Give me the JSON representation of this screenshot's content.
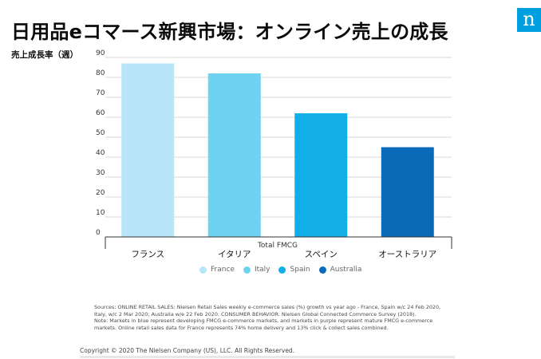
{
  "header": {
    "title": "日用品eコマース新興市場：オンライン売上の成長",
    "logo_letter": "n"
  },
  "chart_data": {
    "type": "bar",
    "ylabel": "売上成長率（週）",
    "xlabel": "Total FMCG",
    "categories": [
      "フランス",
      "イタリア",
      "スペイン",
      "オーストラリア"
    ],
    "values": [
      87,
      82,
      62,
      45
    ],
    "ylim": [
      0,
      90
    ],
    "yticks": [
      0,
      10,
      20,
      30,
      40,
      50,
      60,
      70,
      80,
      90
    ],
    "grid": true,
    "colors": [
      "#b8e6f8",
      "#6fd2f2",
      "#12aee8",
      "#0a6ab8"
    ],
    "legend": {
      "placement": "bottom",
      "items": [
        {
          "label": "France",
          "color": "#b8e6f8"
        },
        {
          "label": "Italy",
          "color": "#6fd2f2"
        },
        {
          "label": "Spain",
          "color": "#12aee8"
        },
        {
          "label": "Australia",
          "color": "#0a6ab8"
        }
      ]
    }
  },
  "notes": {
    "sources_line1": "Sources: ONLINE RETAIL SALES: Nielsen Retail Sales weekly e-commerce sales (%) growth vs year ago - France, Spain w/c 24 Feb 2020,",
    "sources_line2": "Italy, w/c 2 Mar 2020; Australia w/e 22 Feb 2020. CONSUMER BEHAVIOR: Nielsen Global Connected Commerce Survey (2018).",
    "sources_line3": "Note: Markets in blue represent developing FMCG e-commerce markets, and markets in purple represent mature FMCG e-commerce",
    "sources_line4": "markets. Online retail sales data for France represents 74% home delivery and 13% click & collect sales combined."
  },
  "footer": {
    "copyright": "Copyright © 2020 The Nielsen Company (US), LLC. All Rights Reserved."
  }
}
